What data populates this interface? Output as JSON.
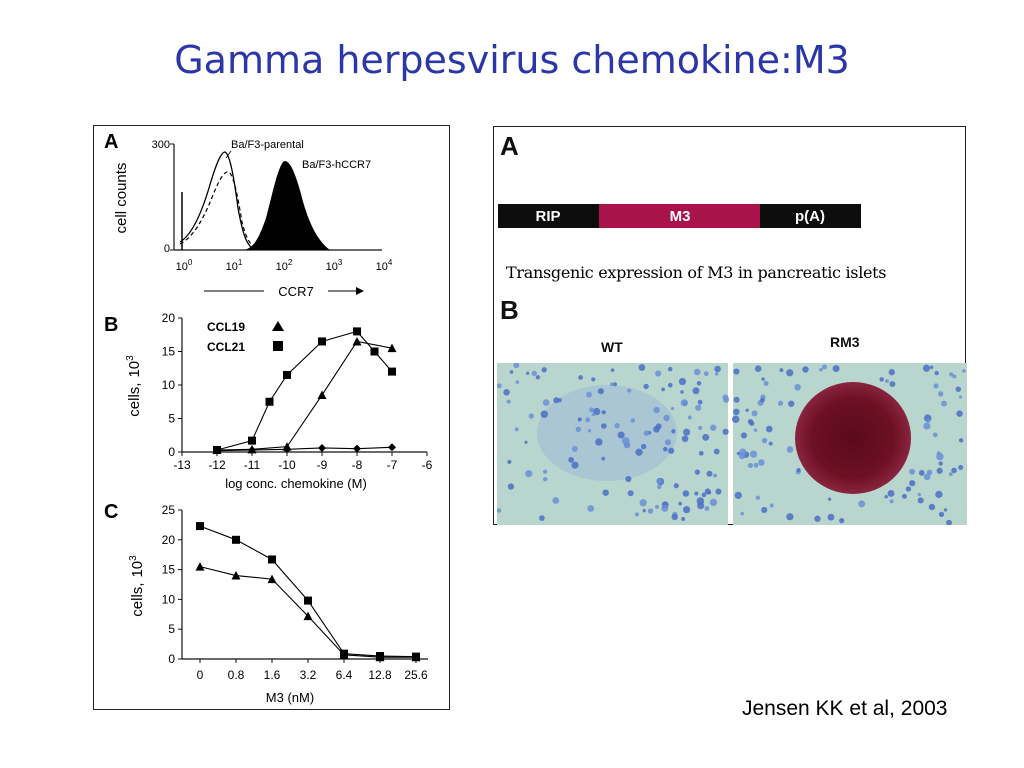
{
  "slide": {
    "title": "Gamma herpesvirus chemokine:M3",
    "citation": "Jensen KK et al, 2003"
  },
  "left_figure": {
    "panel_a": {
      "letter": "A",
      "ylabel": "cell counts",
      "xlabel": "CCR7",
      "y_ticks": [
        "300",
        "0"
      ],
      "x_ticks": [
        {
          "base": "10",
          "exp": "0"
        },
        {
          "base": "10",
          "exp": "1"
        },
        {
          "base": "10",
          "exp": "2"
        },
        {
          "base": "10",
          "exp": "3"
        },
        {
          "base": "10",
          "exp": "4"
        }
      ],
      "legend": [
        "Ba/F3-parental",
        "Ba/F3-hCCR7"
      ]
    },
    "panel_b": {
      "letter": "B",
      "ylabel_main": "cells,",
      "ylabel_unit_base": "10",
      "ylabel_unit_exp": "3",
      "xlabel": "log conc. chemokine (M)",
      "legend": [
        {
          "label": "CCL19",
          "marker": "triangle"
        },
        {
          "label": "CCL21",
          "marker": "square"
        }
      ]
    },
    "panel_c": {
      "letter": "C",
      "ylabel_main": "cells,",
      "ylabel_unit_base": "10",
      "ylabel_unit_exp": "3",
      "xlabel": "M3 (nM)"
    }
  },
  "right_figure": {
    "panel_a_letter": "A",
    "construct": {
      "segments": [
        "RIP",
        "M3",
        "p(A)"
      ],
      "colors": [
        "#0d0d0d",
        "#a8134a",
        "#0d0d0d"
      ]
    },
    "caption": "Transgenic  expression of M3 in pancreatic islets",
    "panel_b_letter": "B",
    "micrographs": [
      "WT",
      "RM3"
    ]
  },
  "chart_data": [
    {
      "type": "line",
      "panel": "B",
      "xlabel": "log conc. chemokine (M)",
      "ylabel": "cells, 10^3",
      "xlim": [
        -13,
        -6
      ],
      "ylim": [
        0,
        20
      ],
      "x_ticks": [
        "-13",
        "-12",
        "-11",
        "-10",
        "-9",
        "-8",
        "-7",
        "-6"
      ],
      "y_ticks": [
        "0",
        "5",
        "10",
        "15",
        "20"
      ],
      "series": [
        {
          "name": "CCL19",
          "marker": "triangle",
          "x": [
            -12,
            -11,
            -10,
            -9,
            -8,
            -7
          ],
          "y": [
            0.3,
            0.4,
            0.8,
            8.5,
            16.5,
            15.5
          ]
        },
        {
          "name": "CCL21",
          "marker": "square",
          "x": [
            -12,
            -11,
            -10.5,
            -10,
            -9,
            -8,
            -7.5,
            -7
          ],
          "y": [
            0.3,
            1.7,
            7.5,
            11.5,
            16.5,
            18,
            15,
            12
          ]
        },
        {
          "marker": "diamond",
          "x": [
            -12,
            -11,
            -10,
            -9,
            -8,
            -7
          ],
          "y": [
            0.2,
            0.3,
            0.4,
            0.6,
            0.5,
            0.7
          ]
        }
      ]
    },
    {
      "type": "line",
      "panel": "C",
      "xlabel": "M3 (nM)",
      "ylabel": "cells, 10^3",
      "categories": [
        "0",
        "0.8",
        "1.6",
        "3.2",
        "6.4",
        "12.8",
        "25.6"
      ],
      "ylim": [
        0,
        25
      ],
      "y_ticks": [
        "0",
        "5",
        "10",
        "15",
        "20",
        "25"
      ],
      "series": [
        {
          "marker": "square",
          "values": [
            22.3,
            20,
            16.7,
            9.8,
            0.9,
            0.5,
            0.4
          ]
        },
        {
          "marker": "triangle",
          "values": [
            15.5,
            14,
            13.4,
            7.2,
            0.7,
            0.3,
            0.3
          ]
        }
      ]
    }
  ]
}
